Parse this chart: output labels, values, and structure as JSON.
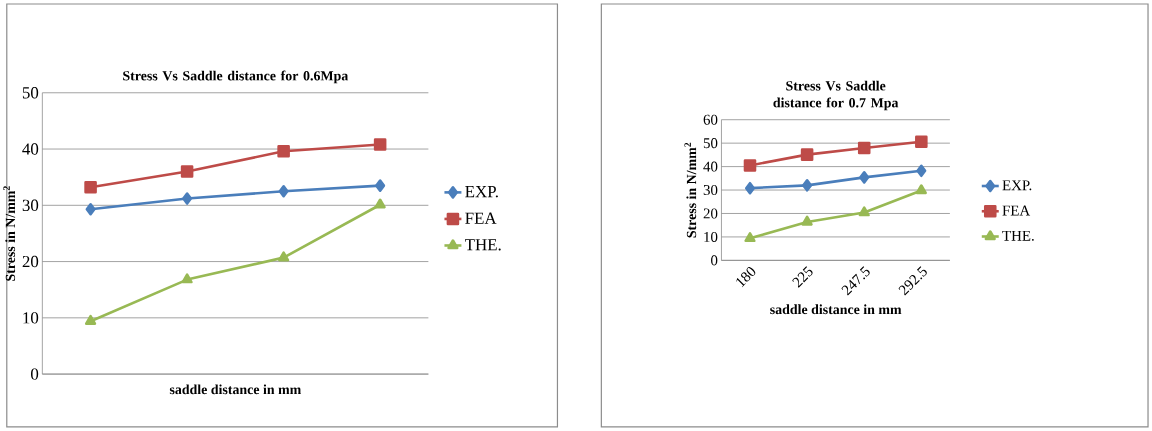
{
  "chart_data": [
    {
      "type": "line",
      "title": "Stress Vs Saddle distance for 0.6Mpa",
      "xlabel": "saddle distance in mm",
      "ylabel": "Stress in N/mm$^{2}$",
      "categories": [
        null,
        null,
        null,
        null
      ],
      "ylim": [
        0,
        50
      ],
      "yticks": [
        0,
        10,
        20,
        30,
        40,
        50
      ],
      "grid": "y",
      "legend": "right",
      "tick_labels": "y",
      "series": [
        {
          "name": "EXP.",
          "color": "#4a7ebb",
          "marker": "diamond",
          "values": [
            29.3,
            31.2,
            32.5,
            33.5
          ]
        },
        {
          "name": "FEA",
          "color": "#be4b48",
          "marker": "square",
          "values": [
            33.2,
            36.0,
            39.6,
            40.8
          ]
        },
        {
          "name": "THE.",
          "color": "#98b954",
          "marker": "triangle",
          "values": [
            9.4,
            16.8,
            20.7,
            30.1
          ]
        }
      ]
    },
    {
      "type": "line",
      "title": "Stress Vs Saddle distance for 0.7 Mpa",
      "xlabel": "saddle distance in mm",
      "ylabel": "Stress in N/mm$^{2}$",
      "categories": [
        "180",
        "225",
        "247.5",
        "292.5"
      ],
      "ylim": [
        0,
        60
      ],
      "yticks": [
        0,
        10,
        20,
        30,
        40,
        50,
        60
      ],
      "grid": "y",
      "legend": "right",
      "series": [
        {
          "name": "EXP.",
          "color": "#4a7ebb",
          "marker": "diamond",
          "values": [
            30.8,
            32.0,
            35.4,
            38.2
          ]
        },
        {
          "name": "FEA",
          "color": "#be4b48",
          "marker": "square",
          "values": [
            40.5,
            45.1,
            47.9,
            50.6
          ]
        },
        {
          "name": "THE.",
          "color": "#98b954",
          "marker": "triangle",
          "values": [
            9.4,
            16.4,
            20.4,
            29.8
          ]
        }
      ]
    }
  ]
}
